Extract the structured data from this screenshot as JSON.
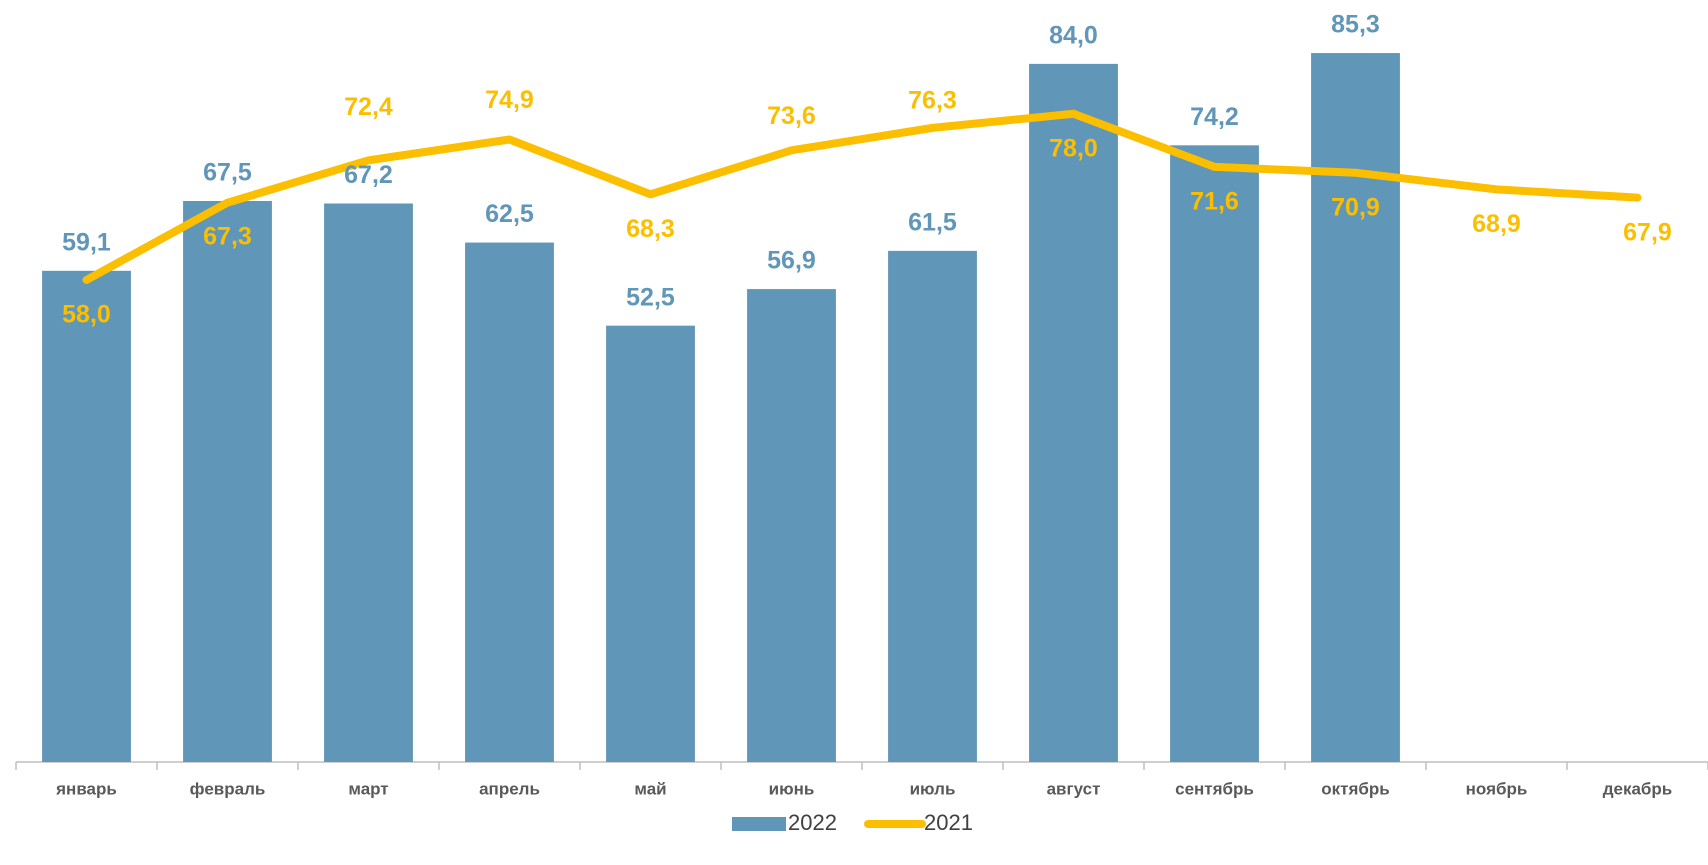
{
  "chart_data": {
    "type": "bar_line",
    "categories": [
      "январь",
      "февраль",
      "март",
      "апрель",
      "май",
      "июнь",
      "июль",
      "август",
      "сентябрь",
      "октябрь",
      "ноябрь",
      "декабрь"
    ],
    "series": [
      {
        "name": "2022",
        "type": "bar",
        "color": "#6096b8",
        "values": [
          59.1,
          67.5,
          67.2,
          62.5,
          52.5,
          56.9,
          61.5,
          84.0,
          74.2,
          85.3,
          null,
          null
        ],
        "value_labels": [
          "59,1",
          "67,5",
          "67,2",
          "62,5",
          "52,5",
          "56,9",
          "61,5",
          "84,0",
          "74,2",
          "85,3",
          null,
          null
        ]
      },
      {
        "name": "2021",
        "type": "line",
        "color": "#fcbf00",
        "values": [
          58.0,
          67.3,
          72.4,
          74.9,
          68.3,
          73.6,
          76.3,
          78.0,
          71.6,
          70.9,
          68.9,
          67.9
        ],
        "value_labels": [
          "58,0",
          "67,3",
          "72,4",
          "74,9",
          "68,3",
          "73,6",
          "76,3",
          "78,0",
          "71,6",
          "70,9",
          "68,9",
          "67,9"
        ]
      }
    ],
    "ylim": [
      0,
      90
    ],
    "grid": false,
    "legend": "bottom"
  }
}
